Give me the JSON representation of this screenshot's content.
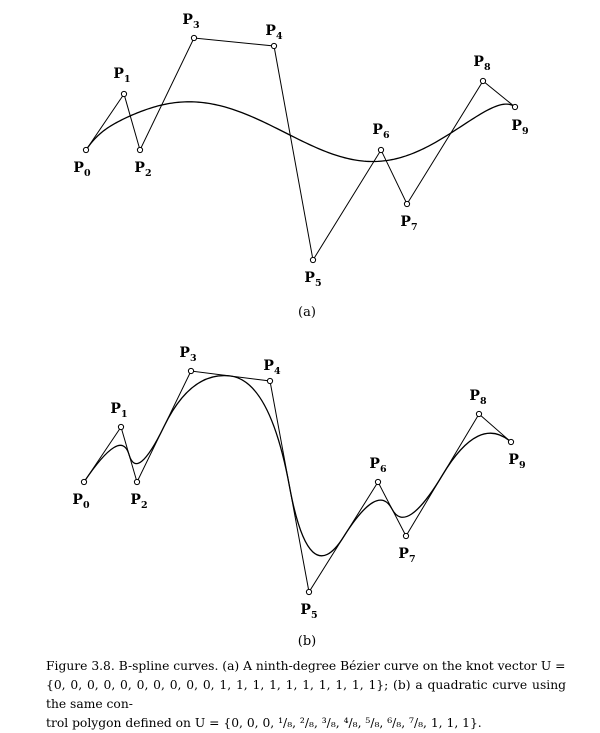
{
  "figure": {
    "panels": [
      {
        "id": "a",
        "label": "(a)",
        "curve": "ninth-degree Bézier",
        "points": [
          {
            "name": "P",
            "sub": "0"
          },
          {
            "name": "P",
            "sub": "1"
          },
          {
            "name": "P",
            "sub": "2"
          },
          {
            "name": "P",
            "sub": "3"
          },
          {
            "name": "P",
            "sub": "4"
          },
          {
            "name": "P",
            "sub": "5"
          },
          {
            "name": "P",
            "sub": "6"
          },
          {
            "name": "P",
            "sub": "7"
          },
          {
            "name": "P",
            "sub": "8"
          },
          {
            "name": "P",
            "sub": "9"
          }
        ]
      },
      {
        "id": "b",
        "label": "(b)",
        "curve": "quadratic B-spline",
        "points": [
          {
            "name": "P",
            "sub": "0"
          },
          {
            "name": "P",
            "sub": "1"
          },
          {
            "name": "P",
            "sub": "2"
          },
          {
            "name": "P",
            "sub": "3"
          },
          {
            "name": "P",
            "sub": "4"
          },
          {
            "name": "P",
            "sub": "5"
          },
          {
            "name": "P",
            "sub": "6"
          },
          {
            "name": "P",
            "sub": "7"
          },
          {
            "name": "P",
            "sub": "8"
          },
          {
            "name": "P",
            "sub": "9"
          }
        ]
      }
    ]
  },
  "caption": {
    "line1": "Figure 3.8. B-spline curves. (a) A ninth-degree Bézier curve on the knot vector U =",
    "line2": "{0, 0, 0, 0, 0, 0, 0, 0, 0, 0, 1, 1, 1, 1, 1, 1, 1, 1, 1, 1}; (b) a quadratic curve using the same con-",
    "line3": "trol polygon defined on U = {0, 0, 0, ¹/₈, ²/₈, ³/₈, ⁴/₈, ⁵/₈, ⁶/₈, ⁷/₈, 1, 1, 1}."
  }
}
